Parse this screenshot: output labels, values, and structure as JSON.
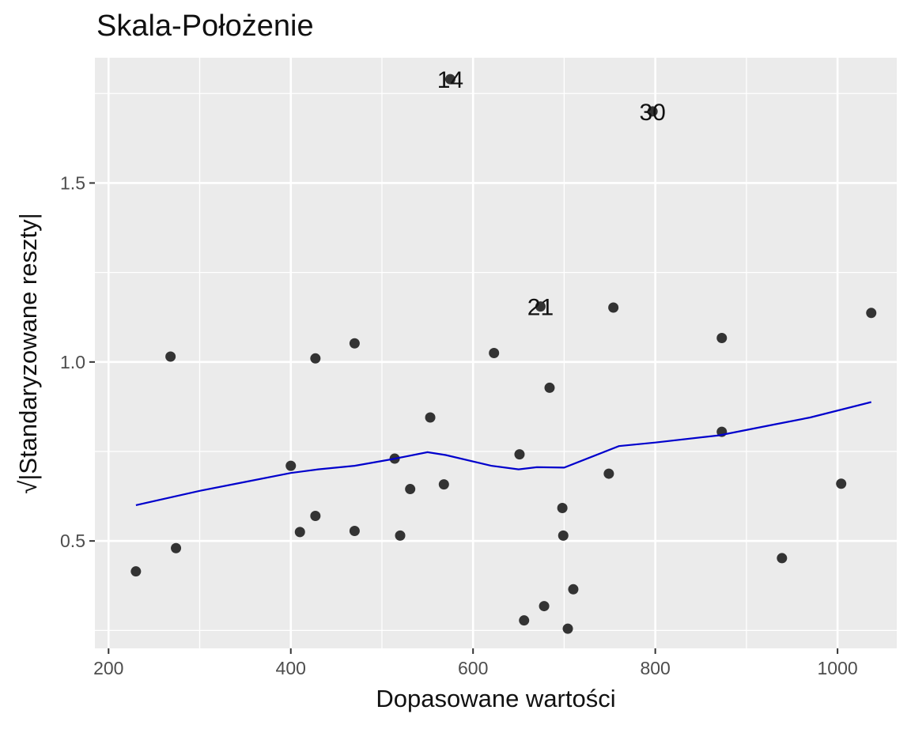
{
  "chart_data": {
    "type": "scatter",
    "title": "Skala-Położenie",
    "xlabel": "Dopasowane wartości",
    "ylabel": "√|Standaryzowane reszty|",
    "xlim": [
      185,
      1065
    ],
    "ylim": [
      0.2,
      1.85
    ],
    "x_ticks": [
      200,
      400,
      600,
      800,
      1000
    ],
    "x_tick_labels": [
      "200",
      "400",
      "600",
      "800",
      "1000"
    ],
    "y_ticks": [
      0.5,
      1.0,
      1.5
    ],
    "y_tick_labels": [
      "0.5",
      "1.0",
      "1.5"
    ],
    "grid": true,
    "colors": {
      "panel": "#ebebeb",
      "grid": "#ffffff",
      "point": "#333333",
      "smooth": "#0000cc"
    },
    "points": [
      {
        "x": 230,
        "y": 0.415
      },
      {
        "x": 268,
        "y": 1.015
      },
      {
        "x": 274,
        "y": 0.48
      },
      {
        "x": 400,
        "y": 0.71
      },
      {
        "x": 410,
        "y": 0.525
      },
      {
        "x": 427,
        "y": 1.01
      },
      {
        "x": 427,
        "y": 0.57
      },
      {
        "x": 470,
        "y": 1.052
      },
      {
        "x": 470,
        "y": 0.528
      },
      {
        "x": 514,
        "y": 0.73
      },
      {
        "x": 520,
        "y": 0.515
      },
      {
        "x": 531,
        "y": 0.645
      },
      {
        "x": 553,
        "y": 0.845
      },
      {
        "x": 568,
        "y": 0.658
      },
      {
        "x": 575,
        "y": 1.79
      },
      {
        "x": 623,
        "y": 1.025
      },
      {
        "x": 651,
        "y": 0.742
      },
      {
        "x": 656,
        "y": 0.278
      },
      {
        "x": 674,
        "y": 1.155
      },
      {
        "x": 678,
        "y": 0.318
      },
      {
        "x": 684,
        "y": 0.928
      },
      {
        "x": 698,
        "y": 0.592
      },
      {
        "x": 699,
        "y": 0.515
      },
      {
        "x": 704,
        "y": 0.255
      },
      {
        "x": 710,
        "y": 0.365
      },
      {
        "x": 749,
        "y": 0.688
      },
      {
        "x": 754,
        "y": 1.152
      },
      {
        "x": 797,
        "y": 1.7
      },
      {
        "x": 873,
        "y": 1.067
      },
      {
        "x": 873,
        "y": 0.805
      },
      {
        "x": 939,
        "y": 0.452
      },
      {
        "x": 1004,
        "y": 0.66
      },
      {
        "x": 1037,
        "y": 1.137
      }
    ],
    "smooth": {
      "x": [
        230,
        300,
        350,
        400,
        430,
        470,
        510,
        550,
        570,
        620,
        650,
        670,
        700,
        730,
        760,
        800,
        870,
        930,
        970,
        1037
      ],
      "y": [
        0.6,
        0.64,
        0.665,
        0.69,
        0.7,
        0.71,
        0.728,
        0.748,
        0.74,
        0.71,
        0.7,
        0.706,
        0.705,
        0.735,
        0.765,
        0.775,
        0.795,
        0.825,
        0.845,
        0.888
      ]
    },
    "annotations": [
      {
        "text": "14",
        "x": 575,
        "y": 1.79
      },
      {
        "text": "30",
        "x": 797,
        "y": 1.7
      },
      {
        "text": "21",
        "x": 674,
        "y": 1.155
      }
    ]
  }
}
